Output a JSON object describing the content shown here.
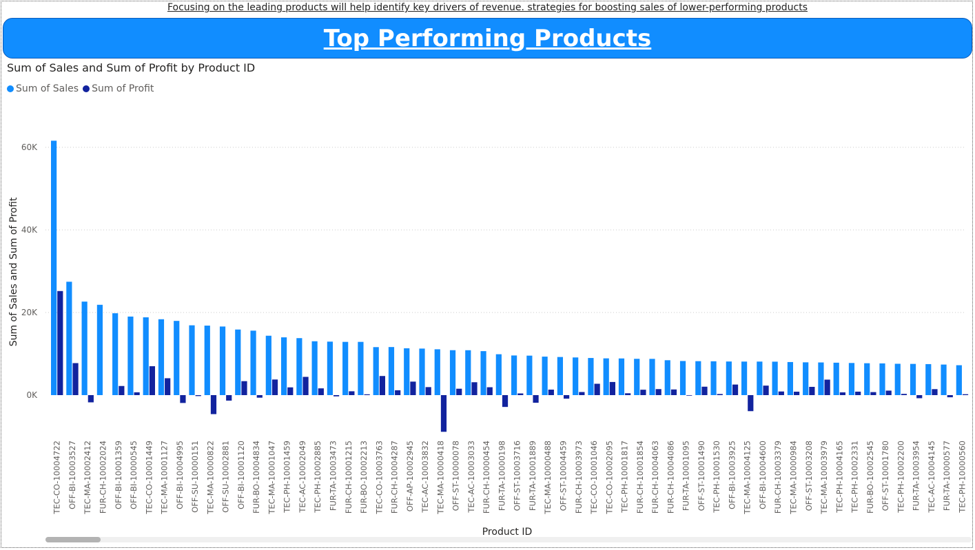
{
  "page": {
    "subtitle": "Focusing on the leading products will help identify key drivers of revenue. strategies for boosting sales of lower-performing products",
    "banner_title": "Top Performing Products"
  },
  "colors": {
    "sales": "#118dff",
    "profit": "#12239e",
    "banner": "#118dff"
  },
  "chart_data": {
    "type": "bar",
    "title": "Sum of Sales and Sum of Profit by Product ID",
    "xlabel": "Product ID",
    "ylabel": "Sum of Sales and Sum of Profit",
    "ylim": [
      -10000,
      66000
    ],
    "yticks": [
      0,
      20000,
      40000,
      60000
    ],
    "ytick_labels": [
      "0K",
      "20K",
      "40K",
      "60K"
    ],
    "legend": "top-left",
    "grid": true,
    "categories": [
      "TEC-CO-10004722",
      "OFF-BI-10003527",
      "TEC-MA-10002412",
      "FUR-CH-10002024",
      "OFF-BI-10001359",
      "OFF-BI-10000545",
      "TEC-CO-10001449",
      "TEC-MA-10001127",
      "OFF-BI-10004995",
      "OFF-SU-10000151",
      "TEC-MA-10000822",
      "OFF-SU-10002881",
      "OFF-BI-10001120",
      "FUR-BO-10004834",
      "TEC-MA-10001047",
      "TEC-PH-10001459",
      "TEC-AC-10002049",
      "TEC-PH-10002885",
      "FUR-TA-10003473",
      "FUR-CH-10001215",
      "FUR-BO-10002213",
      "TEC-CO-10003763",
      "FUR-CH-10004287",
      "OFF-AP-10002945",
      "TEC-AC-10003832",
      "TEC-MA-10000418",
      "OFF-ST-10000078",
      "TEC-AC-10003033",
      "FUR-CH-10000454",
      "FUR-TA-10000198",
      "OFF-ST-10003716",
      "FUR-TA-10001889",
      "TEC-MA-10000488",
      "OFF-ST-10004459",
      "FUR-CH-10003973",
      "TEC-CO-10001046",
      "TEC-CO-10002095",
      "TEC-PH-10001817",
      "FUR-CH-10001854",
      "FUR-CH-10004063",
      "FUR-CH-10004086",
      "FUR-TA-10001095",
      "OFF-ST-10001490",
      "TEC-PH-10001530",
      "OFF-BI-10003925",
      "TEC-MA-10004125",
      "OFF-BI-10004600",
      "FUR-CH-10003379",
      "TEC-MA-10000984",
      "OFF-ST-10003208",
      "TEC-MA-10003979",
      "TEC-PH-10004165",
      "TEC-PH-10002331",
      "FUR-BO-10002545",
      "OFF-ST-10001780",
      "TEC-PH-10002200",
      "FUR-TA-10003954",
      "TEC-AC-10004145",
      "FUR-TA-10000577",
      "TEC-PH-10000560"
    ],
    "series": [
      {
        "name": "Sum of Sales",
        "values": [
          61600,
          27450,
          22640,
          21870,
          19820,
          19020,
          18840,
          18370,
          17970,
          16900,
          16830,
          16610,
          15880,
          15610,
          14380,
          13990,
          13800,
          13040,
          12950,
          12890,
          12890,
          11620,
          11640,
          11340,
          11270,
          11100,
          10880,
          10870,
          10650,
          9900,
          9600,
          9560,
          9320,
          9230,
          9120,
          8990,
          8900,
          8880,
          8790,
          8780,
          8450,
          8260,
          8220,
          8190,
          8140,
          8120,
          8120,
          8100,
          8010,
          7940,
          7910,
          7850,
          7780,
          7720,
          7680,
          7590,
          7560,
          7510,
          7400,
          7240
        ]
      },
      {
        "name": "Sum of Profit",
        "values": [
          25200,
          7750,
          -1750,
          0,
          2210,
          680,
          7000,
          4090,
          -1900,
          -230,
          -4600,
          -1330,
          3380,
          -620,
          3780,
          1880,
          4420,
          1640,
          -300,
          930,
          200,
          4630,
          1170,
          3270,
          1940,
          -8880,
          1550,
          3120,
          1910,
          -2860,
          410,
          -1850,
          1330,
          -860,
          750,
          2750,
          3180,
          450,
          1310,
          1460,
          1370,
          -130,
          2040,
          270,
          2560,
          -3880,
          2300,
          880,
          830,
          2000,
          3750,
          670,
          840,
          730,
          1090,
          300,
          -750,
          1450,
          -520,
          220
        ]
      }
    ]
  }
}
